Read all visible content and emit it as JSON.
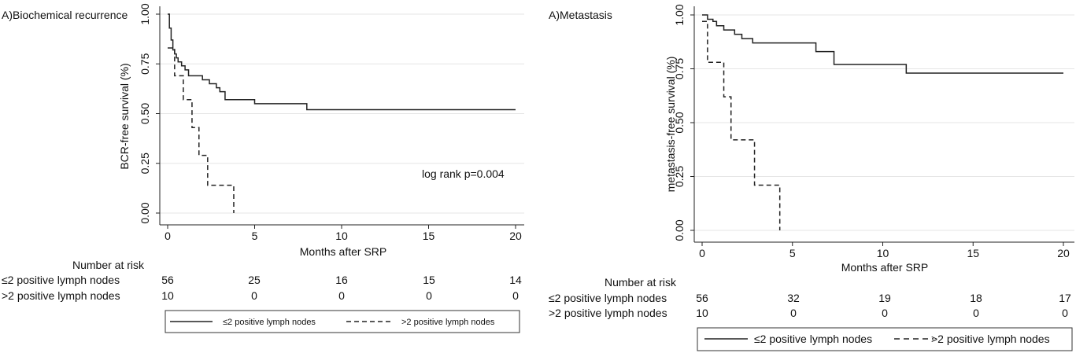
{
  "chart_data": [
    {
      "type": "line",
      "title": "A)Biochemical recurrence",
      "xlabel": "Months after SRP",
      "ylabel": "BCR-free survival (%)",
      "xlim": [
        0,
        20
      ],
      "ylim": [
        0,
        1
      ],
      "xticks": [
        "0",
        "5",
        "10",
        "15",
        "20"
      ],
      "yticks": [
        "0.00",
        "0.25",
        "0.50",
        "0.75",
        "1.00"
      ],
      "grid": true,
      "annotation": "log rank p=0.004",
      "series": [
        {
          "name": "≤2 positive lymph nodes",
          "style": "solid",
          "x": [
            0,
            0.1,
            0.2,
            0.3,
            0.4,
            0.5,
            0.6,
            0.8,
            1.0,
            1.2,
            2.0,
            2.4,
            2.8,
            3.0,
            3.3,
            5.0,
            8.0,
            20
          ],
          "y": [
            1.0,
            0.93,
            0.87,
            0.82,
            0.8,
            0.78,
            0.76,
            0.74,
            0.72,
            0.69,
            0.67,
            0.65,
            0.63,
            0.61,
            0.57,
            0.55,
            0.52,
            0.52
          ]
        },
        {
          "name": ">2 positive lymph nodes",
          "style": "dashed",
          "x": [
            0,
            0.4,
            0.9,
            1.4,
            1.8,
            2.3,
            3.8
          ],
          "y": [
            0.83,
            0.69,
            0.57,
            0.43,
            0.29,
            0.14,
            0.0
          ]
        }
      ],
      "risk_table": {
        "header": "Number at risk",
        "rows": [
          {
            "label": "≤2 positive lymph nodes",
            "values": [
              "56",
              "25",
              "16",
              "15",
              "14"
            ]
          },
          {
            "label": ">2 positive lymph nodes",
            "values": [
              "10",
              "0",
              "0",
              "0",
              "0"
            ]
          }
        ]
      },
      "legend": [
        "≤2 positive lymph nodes",
        ">2 positive lymph nodes"
      ]
    },
    {
      "type": "line",
      "title": "A)Metastasis",
      "xlabel": "Months after SRP",
      "ylabel": "metastasis-free survival (%)",
      "xlim": [
        0,
        20
      ],
      "ylim": [
        0,
        1
      ],
      "xticks": [
        "0",
        "5",
        "10",
        "15",
        "20"
      ],
      "yticks": [
        "0.00",
        "0.25",
        "0.50",
        "0.75",
        "1.00"
      ],
      "grid": true,
      "series": [
        {
          "name": "≤2 positive lymph nodes",
          "style": "solid",
          "x": [
            0,
            0.3,
            0.6,
            0.8,
            1.2,
            1.8,
            2.2,
            2.8,
            6.3,
            7.3,
            11.3,
            20
          ],
          "y": [
            1.0,
            0.98,
            0.97,
            0.95,
            0.93,
            0.91,
            0.89,
            0.87,
            0.83,
            0.77,
            0.73,
            0.73
          ]
        },
        {
          "name": ">2 positive lymph nodes",
          "style": "dashed",
          "x": [
            0,
            0.3,
            1.2,
            1.6,
            2.9,
            4.3
          ],
          "y": [
            0.97,
            0.78,
            0.62,
            0.42,
            0.21,
            0.0
          ]
        }
      ],
      "risk_table": {
        "header": "Number at risk",
        "rows": [
          {
            "label": "≤2 positive lymph nodes",
            "values": [
              "56",
              "32",
              "19",
              "18",
              "17"
            ]
          },
          {
            "label": ">2 positive lymph nodes",
            "values": [
              "10",
              "0",
              "0",
              "0",
              "0"
            ]
          }
        ]
      },
      "legend": [
        "≤2 positive lymph nodes",
        ">2 positive lymph nodes"
      ]
    }
  ]
}
